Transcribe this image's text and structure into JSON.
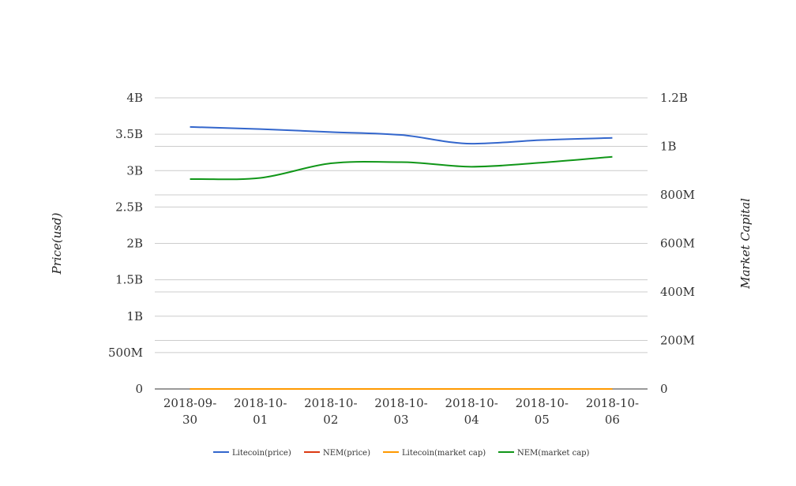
{
  "chart_data": {
    "type": "line",
    "categories": [
      "2018-09-30",
      "2018-10-01",
      "2018-10-02",
      "2018-10-03",
      "2018-10-04",
      "2018-10-05",
      "2018-10-06"
    ],
    "category_lines": [
      [
        "2018-09-",
        "30"
      ],
      [
        "2018-10-",
        "01"
      ],
      [
        "2018-10-",
        "02"
      ],
      [
        "2018-10-",
        "03"
      ],
      [
        "2018-10-",
        "04"
      ],
      [
        "2018-10-",
        "05"
      ],
      [
        "2018-10-",
        "06"
      ]
    ],
    "y_left": {
      "label": "Price(usd)",
      "range": [
        0,
        4000000000
      ],
      "ticks": [
        0,
        500000000,
        1000000000,
        1500000000,
        2000000000,
        2500000000,
        3000000000,
        3500000000,
        4000000000
      ],
      "tick_labels": [
        "0",
        "500M",
        "1B",
        "1.5B",
        "2B",
        "2.5B",
        "3B",
        "3.5B",
        "4B"
      ]
    },
    "y_right": {
      "label": "Market Capital",
      "range": [
        0,
        1200000000
      ],
      "ticks": [
        0,
        200000000,
        400000000,
        600000000,
        800000000,
        1000000000,
        1200000000
      ],
      "tick_labels": [
        "0",
        "200M",
        "400M",
        "600M",
        "800M",
        "1B",
        "1.2B"
      ]
    },
    "series": [
      {
        "name": "Litecoin(price)",
        "axis": "left",
        "color": "#3366cc",
        "values": [
          3600000000,
          3570000000,
          3530000000,
          3490000000,
          3370000000,
          3420000000,
          3450000000
        ]
      },
      {
        "name": "NEM(price)",
        "axis": "left",
        "color": "#dc3912",
        "values": [
          0,
          0,
          0,
          0,
          0,
          0,
          0
        ]
      },
      {
        "name": "Litecoin(market cap)",
        "axis": "right",
        "color": "#ff9900",
        "values": [
          0,
          0,
          0,
          0,
          0,
          0,
          0
        ]
      },
      {
        "name": "NEM(market cap)",
        "axis": "right",
        "color": "#109618",
        "values": [
          865000000,
          870000000,
          930000000,
          935000000,
          916000000,
          933000000,
          957000000
        ]
      }
    ],
    "grid": true,
    "legend_position": "bottom"
  }
}
